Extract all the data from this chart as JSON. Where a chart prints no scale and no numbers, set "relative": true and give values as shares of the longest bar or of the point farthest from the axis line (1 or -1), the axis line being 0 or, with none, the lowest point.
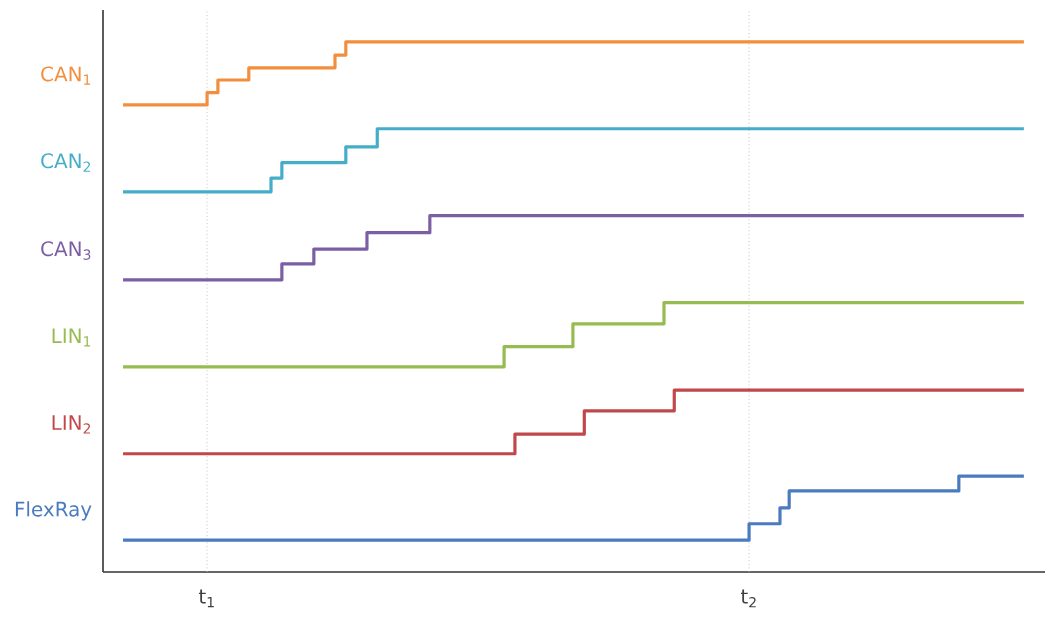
{
  "chart_data": {
    "type": "step",
    "relative": true,
    "xlim": [
      0.808,
      2.546
    ],
    "xticks": [
      {
        "value": 1,
        "label": "t$_{1}$"
      },
      {
        "value": 2,
        "label": "t$_{2}$"
      }
    ],
    "ref_lines": [
      {
        "axis": "x",
        "value": 1,
        "color": "#bbbbbb",
        "line_style": "dotted"
      },
      {
        "axis": "x",
        "value": 2,
        "color": "#bbbbbb",
        "line_style": "dotted"
      }
    ],
    "series": [
      {
        "name": "CAN$_{1}$",
        "color": "#f28e3c",
        "x": [
          0.845,
          1.0,
          1.02,
          1.077,
          1.236,
          1.256,
          2.507
        ],
        "values": [
          0.881,
          0.904,
          0.928,
          0.951,
          0.975,
          1.0,
          1.0
        ]
      },
      {
        "name": "CAN$_{2}$",
        "color": "#45adc7",
        "x": [
          0.845,
          1.118,
          1.138,
          1.256,
          1.314,
          2.507
        ],
        "values": [
          0.717,
          0.743,
          0.772,
          0.802,
          0.836,
          0.836
        ]
      },
      {
        "name": "CAN$_{3}$",
        "color": "#7b5fa5",
        "x": [
          0.845,
          1.138,
          1.197,
          1.295,
          1.411,
          2.507
        ],
        "values": [
          0.551,
          0.581,
          0.609,
          0.64,
          0.672,
          0.672
        ]
      },
      {
        "name": "LIN$_{1}$",
        "color": "#96bb50",
        "x": [
          0.845,
          1.548,
          1.675,
          1.843,
          2.507
        ],
        "values": [
          0.387,
          0.425,
          0.468,
          0.508,
          0.508
        ]
      },
      {
        "name": "LIN$_{2}$",
        "color": "#c0484a",
        "x": [
          0.845,
          1.568,
          1.696,
          1.862,
          2.507
        ],
        "values": [
          0.223,
          0.26,
          0.304,
          0.343,
          0.343
        ]
      },
      {
        "name": "FlexRay",
        "color": "#4a7bbf",
        "x": [
          0.845,
          2.0,
          2.057,
          2.074,
          2.387,
          2.507
        ],
        "values": [
          0.06,
          0.091,
          0.121,
          0.153,
          0.181,
          0.181
        ]
      }
    ]
  }
}
